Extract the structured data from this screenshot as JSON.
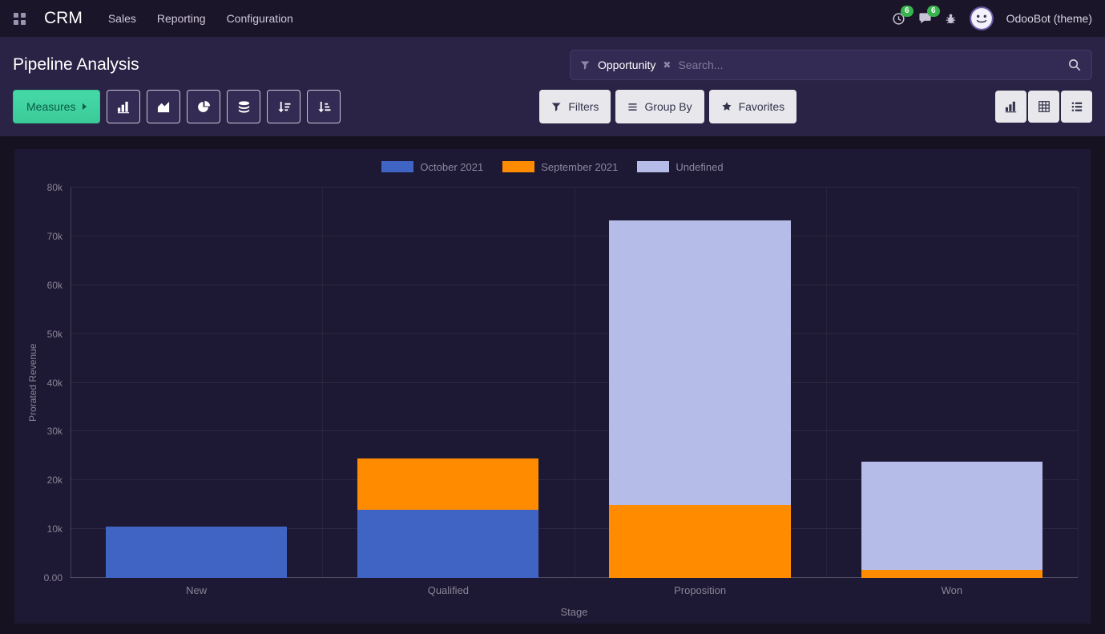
{
  "navbar": {
    "app_name": "CRM",
    "menu_items": [
      "Sales",
      "Reporting",
      "Configuration"
    ],
    "activities_count": "6",
    "messages_count": "6",
    "user_name": "OdooBot (theme)"
  },
  "control_panel": {
    "title": "Pipeline Analysis",
    "search": {
      "facet": "Opportunity",
      "placeholder": "Search..."
    },
    "measures_label": "Measures",
    "filters_label": "Filters",
    "group_by_label": "Group By",
    "favorites_label": "Favorites"
  },
  "icons": {
    "facet_remove": "✖"
  },
  "theme": {
    "accent_green": "#3ecf9e",
    "badge_green": "#38b44e",
    "navbar_bg": "#1b1529",
    "panel_bg": "#2a2345",
    "chart_bg": "#1d1833"
  },
  "chart_data": {
    "type": "bar",
    "stacked": true,
    "title": "",
    "xlabel": "Stage",
    "ylabel": "Prorated Revenue",
    "categories": [
      "New",
      "Qualified",
      "Proposition",
      "Won"
    ],
    "series": [
      {
        "name": "October 2021",
        "color": "#4064c4",
        "values": [
          10500,
          14000,
          0,
          0
        ]
      },
      {
        "name": "September 2021",
        "color": "#ff8c00",
        "values": [
          0,
          10500,
          15000,
          1600
        ]
      },
      {
        "name": "Undefined",
        "color": "#b5bce8",
        "values": [
          0,
          0,
          58200,
          22300
        ]
      }
    ],
    "ylim": [
      0,
      80000
    ],
    "yticks": [
      "80k",
      "70k",
      "60k",
      "50k",
      "40k",
      "30k",
      "20k",
      "10k",
      "0.00"
    ],
    "ytick_values": [
      80000,
      70000,
      60000,
      50000,
      40000,
      30000,
      20000,
      10000,
      0
    ],
    "grid": true,
    "legend_position": "top"
  }
}
